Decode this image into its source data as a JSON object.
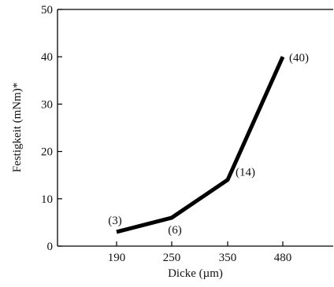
{
  "chart_data": {
    "type": "line",
    "xlabel": "Dicke (µm)",
    "ylabel": "Festigkeit (mNm)*",
    "categories": [
      "190",
      "250",
      "350",
      "480"
    ],
    "series": [
      {
        "values": [
          3,
          6,
          14,
          40
        ]
      }
    ],
    "data_labels": [
      "(3)",
      "(6)",
      "(14)",
      "(40)"
    ],
    "y_ticks": [
      0,
      10,
      20,
      30,
      40,
      50
    ],
    "ylim": [
      0,
      50
    ],
    "grid": false,
    "line_color": "#000000"
  }
}
